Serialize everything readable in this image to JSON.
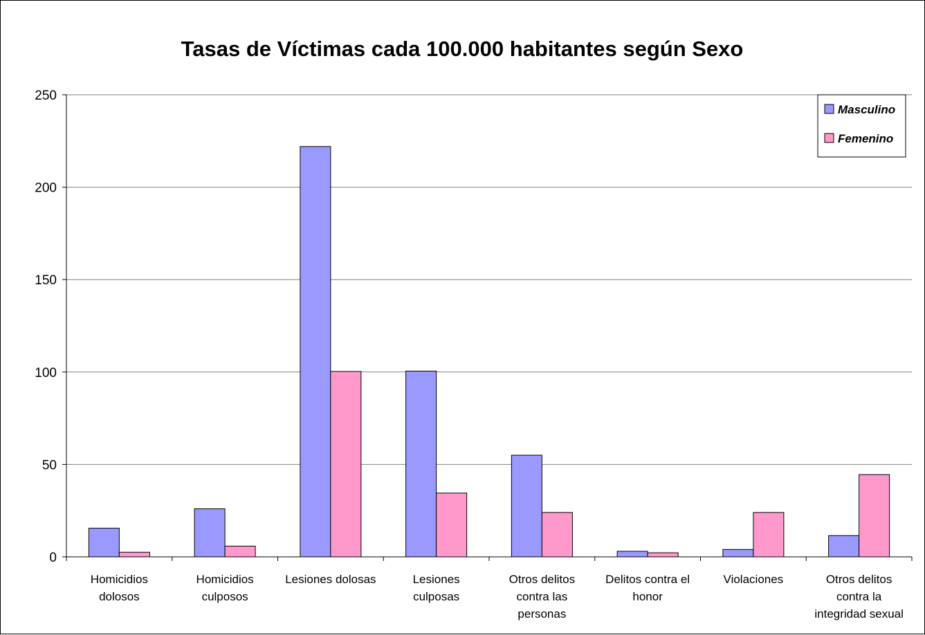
{
  "chart_data": {
    "type": "bar",
    "title": "Tasas de Víctimas cada 100.000 habitantes según Sexo",
    "xlabel": "",
    "ylabel": "",
    "ylim": [
      0,
      250
    ],
    "yticks": [
      "0",
      "50",
      "100",
      "150",
      "200",
      "250"
    ],
    "grid": true,
    "legend_position": "top-right",
    "categories": [
      [
        "Homicidios",
        "dolosos"
      ],
      [
        "Homicidios",
        "culposos"
      ],
      [
        "Lesiones dolosas"
      ],
      [
        "Lesiones",
        "culposas"
      ],
      [
        "Otros delitos",
        "contra las",
        "personas"
      ],
      [
        "Delitos contra el",
        "honor"
      ],
      [
        "Violaciones"
      ],
      [
        "Otros delitos",
        "contra la",
        "integridad sexual"
      ]
    ],
    "series": [
      {
        "name": "Masculino",
        "color": "#9999ff",
        "values": [
          15.5,
          26,
          222,
          100.5,
          55,
          3,
          4,
          11.5
        ]
      },
      {
        "name": "Femenino",
        "color": "#ff99cc",
        "values": [
          2.5,
          5.8,
          100.3,
          34.5,
          24,
          2.2,
          24,
          44.5
        ]
      }
    ]
  }
}
